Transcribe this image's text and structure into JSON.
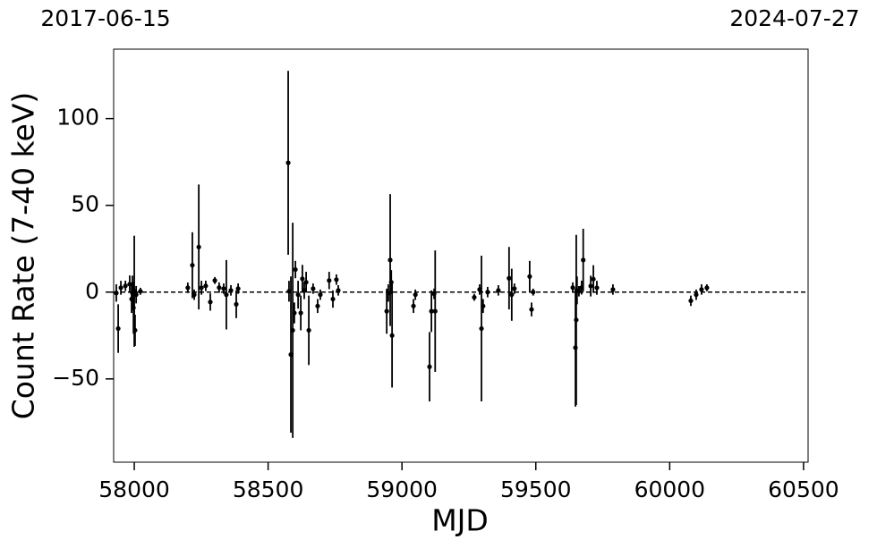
{
  "chart_data": {
    "type": "scatter",
    "top_axis_labels": [
      "2017-06-15",
      "2024-07-27"
    ],
    "x_label": "MJD",
    "y_label": "Count Rate (7-40 keV)",
    "xlim": [
      57923,
      60517
    ],
    "ylim": [
      -98,
      140
    ],
    "xticks": [
      58000,
      58500,
      59000,
      59500,
      60000,
      60500
    ],
    "yticks": [
      {
        "value": -50,
        "label": "−50"
      },
      0,
      50,
      100
    ],
    "hline": 0,
    "series": [
      {
        "color": "#000000",
        "x": [
          57940,
          57933,
          57950,
          57967,
          57983,
          57990,
          57993,
          57997,
          58000,
          58003,
          58007,
          58023,
          58200,
          58217,
          58224,
          58241,
          58251,
          58267,
          58284,
          58301,
          58317,
          58334,
          58344,
          58361,
          58381,
          58388,
          58575,
          58578,
          58585,
          58592,
          58598,
          58602,
          58612,
          58622,
          58628,
          58635,
          58642,
          58652,
          58668,
          58685,
          58695,
          58728,
          58742,
          58755,
          58762,
          58943,
          58949,
          58956,
          58960,
          58963,
          59043,
          59050,
          59103,
          59110,
          59120,
          59124,
          59270,
          59290,
          59297,
          59303,
          59320,
          59360,
          59400,
          59410,
          59420,
          59477,
          59484,
          59490,
          59638,
          59648,
          59651,
          59654,
          59661,
          59671,
          59677,
          59705,
          59715,
          59728,
          59788,
          60079,
          60099,
          60119,
          60139
        ],
        "values": [
          -21,
          -0.5,
          2.5,
          3.6,
          4.6,
          -4,
          -0.5,
          -9,
          0.5,
          -22,
          -1.5,
          0.5,
          2.5,
          15.5,
          -1.5,
          26,
          2.5,
          3.6,
          -5.7,
          6.7,
          2.6,
          2,
          -1.5,
          1,
          -7,
          2,
          74.5,
          0.5,
          -36,
          -22,
          -12,
          13,
          -1.5,
          -12,
          7.7,
          1,
          5.7,
          -22,
          2,
          -8,
          -1.5,
          6.7,
          -4,
          7.2,
          1,
          -11,
          -0.5,
          18.5,
          5.7,
          -25,
          -8,
          -1.5,
          -43,
          -11,
          -1,
          -11,
          -3,
          1.5,
          -21,
          -8,
          0,
          1,
          8,
          -1.5,
          2,
          9,
          -10,
          0,
          2.6,
          -32,
          -16,
          1,
          0.5,
          2.6,
          18.5,
          3.5,
          7.5,
          2.5,
          1.5,
          -5,
          -1.5,
          1.5,
          2.5
        ],
        "errors": [
          14,
          5,
          4,
          3,
          5,
          8,
          10,
          15,
          32,
          9,
          5,
          2,
          3,
          19,
          3,
          36,
          4,
          3,
          5,
          2,
          3,
          3,
          20,
          3,
          8,
          3,
          53,
          6,
          45,
          62,
          6,
          5,
          8,
          10,
          8,
          5,
          6,
          20,
          3,
          4,
          3,
          5,
          5,
          3,
          3,
          13,
          5,
          38,
          7,
          30,
          4,
          3,
          20,
          12,
          3,
          35,
          2,
          3,
          42,
          4,
          3,
          3,
          18,
          15,
          3,
          9,
          4,
          2,
          3,
          34,
          49,
          8,
          3,
          4,
          18,
          6,
          8,
          4,
          3,
          3,
          3,
          3,
          2
        ]
      }
    ]
  }
}
